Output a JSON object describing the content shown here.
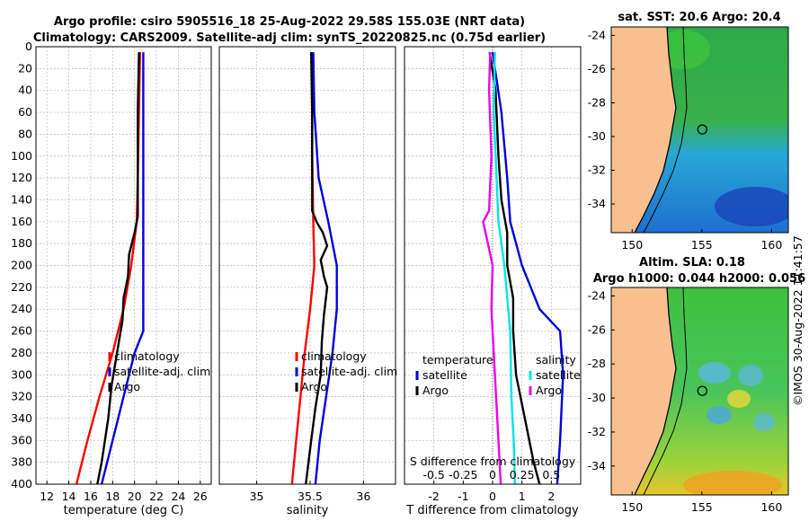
{
  "title_line1": "Argo profile: csiro 5905516_18 25-Aug-2022 29.58S 155.03E (NRT data)",
  "title_line2": "Climatology: CARS2009. Satellite-adj clim: synTS_20220825.nc (0.75d earlier)",
  "footer_stamp": "©IMOS 30-Aug-2022 11:41:57",
  "colors": {
    "climatology": "#ff0000",
    "satellite": "#0000dd",
    "argo": "#000000",
    "salinity_sat": "#00e5e5",
    "salinity_argo": "#ee00ee",
    "land": "#f9c08f"
  },
  "chart_data": [
    {
      "type": "line",
      "name": "temperature",
      "xlabel": "temperature (deg C)",
      "ylabel": "",
      "xlim": [
        11,
        27
      ],
      "ylim": [
        400,
        0
      ],
      "xticks": [
        "12",
        "14",
        "16",
        "18",
        "20",
        "22",
        "24",
        "26"
      ],
      "yticks": [
        "0",
        "20",
        "40",
        "60",
        "80",
        "100",
        "120",
        "140",
        "160",
        "180",
        "200",
        "220",
        "240",
        "260",
        "280",
        "300",
        "320",
        "340",
        "360",
        "380",
        "400"
      ],
      "legend": [
        "climatology",
        "satellite-adj. clim",
        "Argo"
      ],
      "series": [
        {
          "name": "climatology",
          "color": "#ff0000",
          "points": [
            [
              20.5,
              5
            ],
            [
              20.4,
              60
            ],
            [
              20.3,
              120
            ],
            [
              20.2,
              160
            ],
            [
              19.7,
              200
            ],
            [
              19.0,
              240
            ],
            [
              18.0,
              280
            ],
            [
              16.8,
              320
            ],
            [
              15.7,
              360
            ],
            [
              14.7,
              400
            ]
          ]
        },
        {
          "name": "satellite-adj. clim",
          "color": "#0000dd",
          "points": [
            [
              20.8,
              5
            ],
            [
              20.8,
              100
            ],
            [
              20.8,
              200
            ],
            [
              20.8,
              260
            ],
            [
              20.0,
              280
            ],
            [
              19.0,
              320
            ],
            [
              18.0,
              360
            ],
            [
              17.0,
              400
            ]
          ]
        },
        {
          "name": "Argo",
          "color": "#000000",
          "points": [
            [
              20.4,
              5
            ],
            [
              20.3,
              60
            ],
            [
              20.3,
              120
            ],
            [
              20.3,
              155
            ],
            [
              20.0,
              170
            ],
            [
              19.5,
              190
            ],
            [
              19.4,
              210
            ],
            [
              19.0,
              230
            ],
            [
              18.9,
              250
            ],
            [
              18.4,
              280
            ],
            [
              17.9,
              310
            ],
            [
              17.6,
              340
            ],
            [
              17.0,
              380
            ],
            [
              16.6,
              400
            ]
          ]
        }
      ]
    },
    {
      "type": "line",
      "name": "salinity",
      "xlabel": "salinity",
      "xlim": [
        34.65,
        36.3
      ],
      "ylim": [
        400,
        0
      ],
      "xticks": [
        "35",
        "35.5",
        "36"
      ],
      "legend": [
        "climatology",
        "satellite-adj. clim",
        "Argo"
      ],
      "series": [
        {
          "name": "climatology",
          "color": "#ff0000",
          "points": [
            [
              35.52,
              5
            ],
            [
              35.52,
              100
            ],
            [
              35.53,
              160
            ],
            [
              35.54,
              200
            ],
            [
              35.5,
              240
            ],
            [
              35.45,
              280
            ],
            [
              35.41,
              320
            ],
            [
              35.37,
              360
            ],
            [
              35.33,
              400
            ]
          ]
        },
        {
          "name": "satellite-adj. clim",
          "color": "#0000dd",
          "points": [
            [
              35.53,
              5
            ],
            [
              35.54,
              60
            ],
            [
              35.58,
              120
            ],
            [
              35.67,
              160
            ],
            [
              35.75,
              200
            ],
            [
              35.75,
              240
            ],
            [
              35.71,
              280
            ],
            [
              35.65,
              320
            ],
            [
              35.59,
              360
            ],
            [
              35.55,
              400
            ]
          ]
        },
        {
          "name": "Argo",
          "color": "#000000",
          "points": [
            [
              35.51,
              5
            ],
            [
              35.52,
              60
            ],
            [
              35.52,
              150
            ],
            [
              35.56,
              160
            ],
            [
              35.62,
              170
            ],
            [
              35.66,
              182
            ],
            [
              35.6,
              195
            ],
            [
              35.63,
              210
            ],
            [
              35.66,
              220
            ],
            [
              35.63,
              245
            ],
            [
              35.61,
              270
            ],
            [
              35.6,
              300
            ],
            [
              35.55,
              330
            ],
            [
              35.51,
              360
            ],
            [
              35.46,
              400
            ]
          ]
        }
      ]
    },
    {
      "type": "line",
      "name": "difference",
      "xlabel": "T difference from climatology",
      "xlabel_top": "S difference from climatology",
      "xlim": [
        -3,
        3
      ],
      "ylim": [
        400,
        0
      ],
      "xticks": [
        "-2",
        "-1",
        "0",
        "1",
        "2"
      ],
      "xticks_top": [
        "-0.5",
        "-0.25",
        "0",
        "0.25",
        "0.5"
      ],
      "legend_temperature_title": "temperature",
      "legend_salinity_title": "salinity",
      "legend_temperature": [
        "satellite",
        "Argo"
      ],
      "legend_salinity": [
        "satellite",
        "Argo"
      ],
      "series": [
        {
          "name": "T satellite",
          "color": "#0000dd",
          "points": [
            [
              0.0,
              5
            ],
            [
              0.3,
              60
            ],
            [
              0.5,
              120
            ],
            [
              0.6,
              160
            ],
            [
              1.0,
              200
            ],
            [
              1.6,
              240
            ],
            [
              2.3,
              260
            ],
            [
              2.4,
              300
            ],
            [
              2.3,
              360
            ],
            [
              2.2,
              400
            ]
          ]
        },
        {
          "name": "T Argo",
          "color": "#000000",
          "points": [
            [
              -0.1,
              5
            ],
            [
              0.1,
              40
            ],
            [
              0.2,
              100
            ],
            [
              0.3,
              140
            ],
            [
              0.5,
              170
            ],
            [
              0.5,
              200
            ],
            [
              0.7,
              230
            ],
            [
              0.7,
              260
            ],
            [
              0.8,
              300
            ],
            [
              1.1,
              340
            ],
            [
              1.4,
              380
            ],
            [
              1.6,
              400
            ]
          ]
        },
        {
          "name": "S satellite",
          "color": "#00e5e5",
          "points": [
            [
              0.02,
              5
            ],
            [
              0.01,
              60
            ],
            [
              0.05,
              160
            ],
            [
              0.1,
              200
            ],
            [
              0.15,
              260
            ],
            [
              0.16,
              320
            ],
            [
              0.18,
              360
            ],
            [
              0.19,
              400
            ]
          ]
        },
        {
          "name": "S Argo",
          "color": "#ee00ee",
          "points": [
            [
              -0.02,
              5
            ],
            [
              -0.03,
              40
            ],
            [
              -0.01,
              100
            ],
            [
              -0.03,
              150
            ],
            [
              -0.08,
              160
            ],
            [
              -0.04,
              180
            ],
            [
              0.0,
              200
            ],
            [
              -0.01,
              240
            ],
            [
              0.02,
              300
            ],
            [
              0.04,
              340
            ],
            [
              0.07,
              400
            ]
          ]
        }
      ]
    },
    {
      "type": "heatmap",
      "name": "sst-map",
      "title": "sat. SST: 20.6 Argo: 20.4",
      "xticks": [
        "150",
        "155",
        "160"
      ],
      "yticks": [
        "-24",
        "-26",
        "-28",
        "-30",
        "-32",
        "-34"
      ],
      "xlim": [
        148.5,
        161.2
      ],
      "ylim": [
        -35.7,
        -23.5
      ],
      "argo_position": [
        155.03,
        -29.58
      ]
    },
    {
      "type": "heatmap",
      "name": "sla-map",
      "title_line1": "Altim. SLA: 0.18",
      "title_line2": "Argo h1000: 0.044 h2000: 0.056",
      "xticks": [
        "150",
        "155",
        "160"
      ],
      "yticks": [
        "-24",
        "-26",
        "-28",
        "-30",
        "-32",
        "-34"
      ],
      "xlim": [
        148.5,
        161.2
      ],
      "ylim": [
        -35.7,
        -23.5
      ],
      "argo_position": [
        155.03,
        -29.58
      ]
    }
  ]
}
